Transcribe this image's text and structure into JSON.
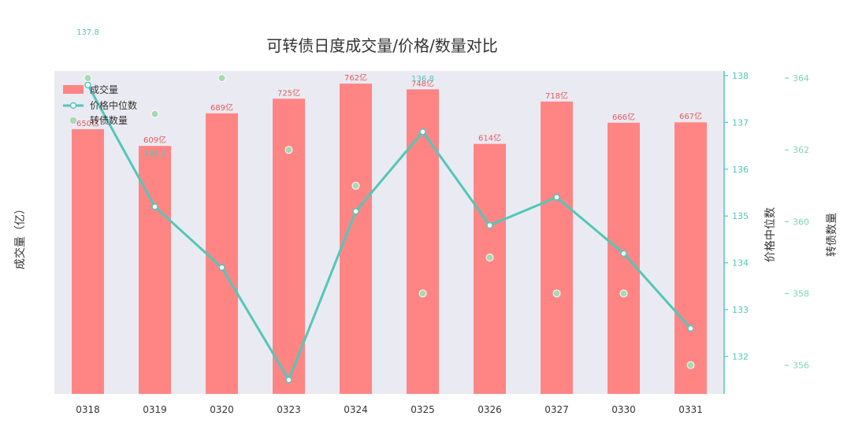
{
  "chart_data": {
    "type": "bar",
    "title": "可转债日度成交量/价格/数量对比",
    "categories": [
      "0318",
      "0319",
      "0320",
      "0323",
      "0324",
      "0325",
      "0326",
      "0327",
      "0330",
      "0331"
    ],
    "ylabel": "成交量（亿）",
    "ylabel2": "价格中位数",
    "ylabel3": "转债数量",
    "series": [
      {
        "name": "成交量",
        "axis": "left",
        "values": [
          650,
          609,
          689,
          725,
          762,
          748,
          614,
          718,
          666,
          667
        ],
        "labels": [
          "650亿",
          "609亿",
          "689亿",
          "725亿",
          "762亿",
          "748亿",
          "614亿",
          "718亿",
          "666亿",
          "667亿"
        ],
        "color": "#ff8585"
      },
      {
        "name": "价格中位数",
        "axis": "right1",
        "type": "line",
        "values": [
          137.8,
          135.2,
          133.9,
          131.5,
          135.1,
          136.8,
          134.8,
          135.4,
          134.2,
          132.6
        ],
        "labels": [
          "137.8",
          "135.2",
          "",
          "",
          "",
          "136.8",
          "",
          "",
          "",
          ""
        ],
        "color": "#52c7b8"
      },
      {
        "name": "转债数量",
        "axis": "right2",
        "type": "scatter",
        "values": [
          364,
          363,
          364,
          362,
          361,
          358,
          359,
          358,
          358,
          356
        ],
        "color": "#a8d9b0"
      }
    ],
    "ylim2": [
      131.2,
      138.1
    ],
    "yticks2": [
      132,
      133,
      134,
      135,
      136,
      137,
      138
    ],
    "ylim3": [
      355.2,
      364.2
    ],
    "yticks3": [
      356,
      358,
      360,
      362,
      364
    ],
    "legend_position": "top-left",
    "grid": false,
    "background": "#eaeaf2",
    "axis_color": "#52c7b8",
    "axis3_color": "#7fd6b5"
  }
}
